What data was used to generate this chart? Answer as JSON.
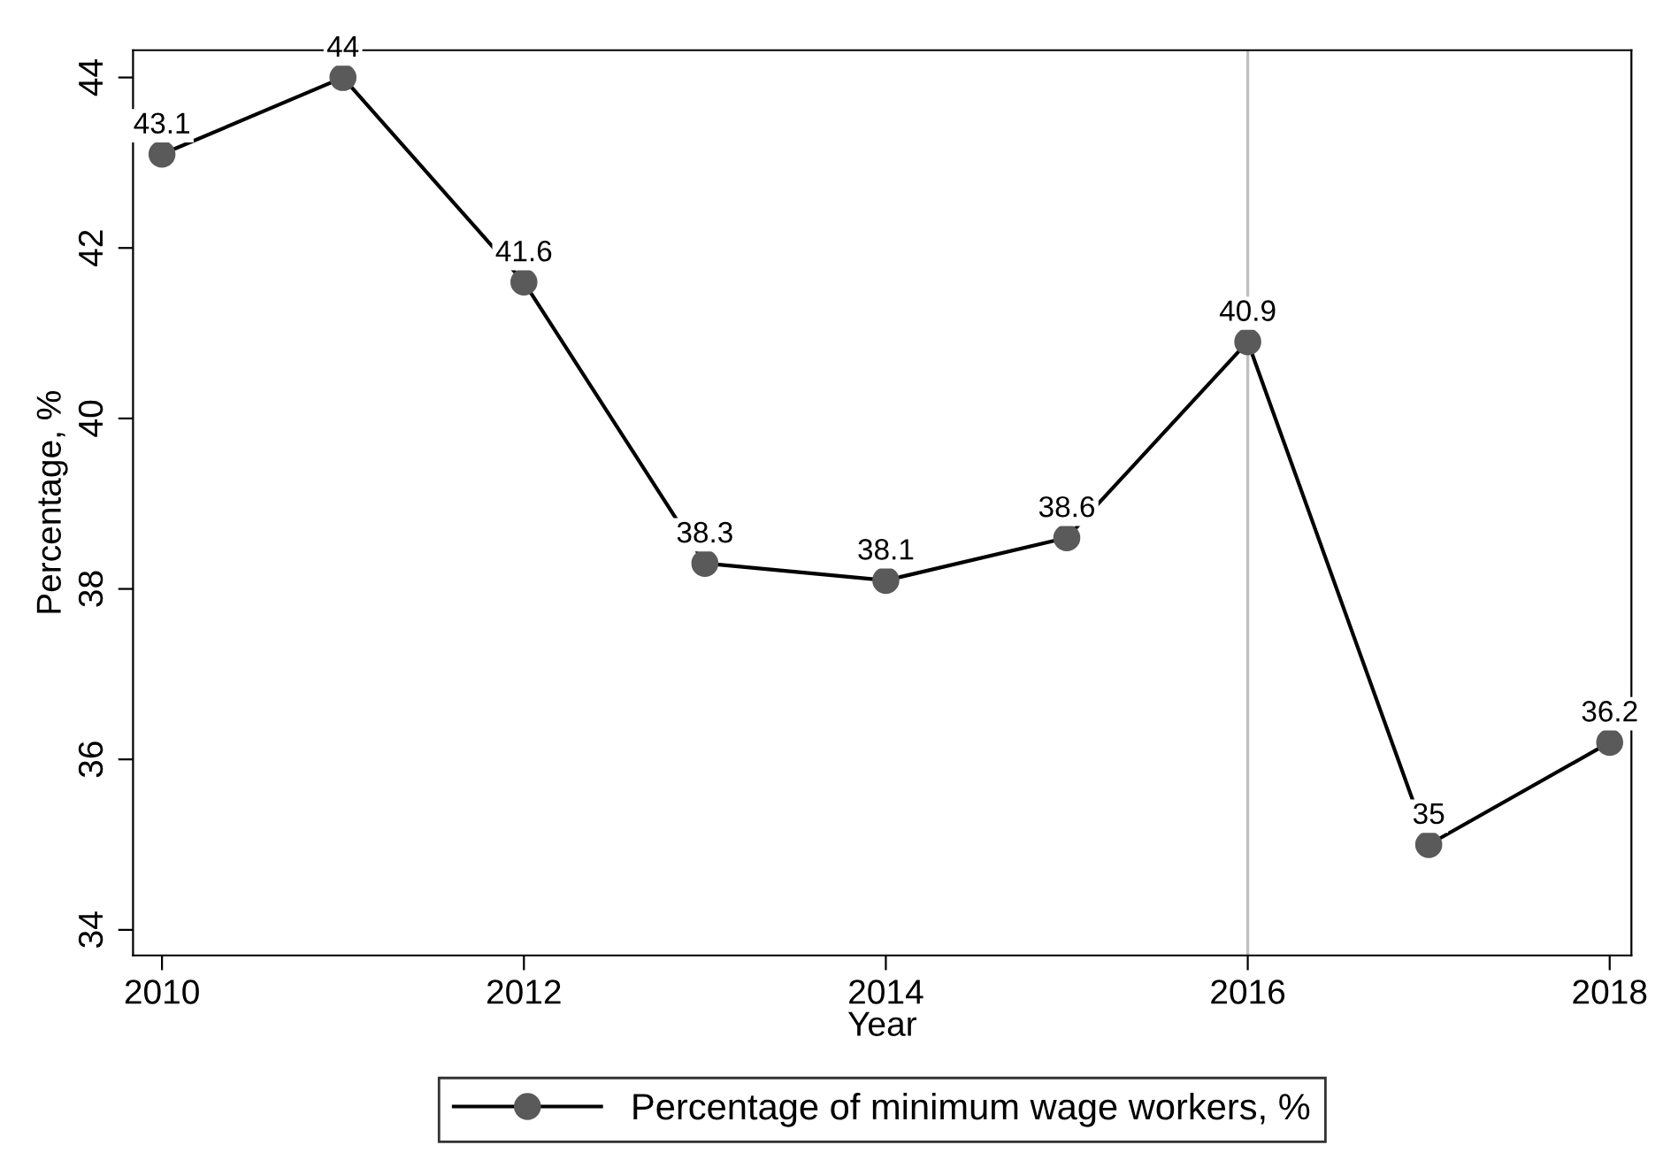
{
  "chart_data": {
    "type": "line",
    "xlabel": "Year",
    "ylabel": "Percentage, %",
    "x": [
      2010,
      2011,
      2012,
      2013,
      2014,
      2015,
      2016,
      2017,
      2018
    ],
    "series": [
      {
        "name": "Percentage of minimum wage workers, %",
        "color": "#5a5a5a",
        "values": [
          43.1,
          44,
          41.6,
          38.3,
          38.1,
          38.6,
          40.9,
          35,
          36.2
        ]
      }
    ],
    "xlim": [
      2009.84,
      2018.12
    ],
    "ylim": [
      33.7,
      44.32
    ],
    "xticks": [
      2010,
      2012,
      2014,
      2016,
      2018
    ],
    "yticks": [
      34,
      36,
      38,
      40,
      42,
      44
    ],
    "ref_lines": [
      {
        "axis": "x",
        "value": 2016,
        "color": "#c0c0c0"
      }
    ],
    "data_labels": true,
    "marker": "circle",
    "line_style": "solid",
    "grid": false,
    "legend": "bottom"
  }
}
